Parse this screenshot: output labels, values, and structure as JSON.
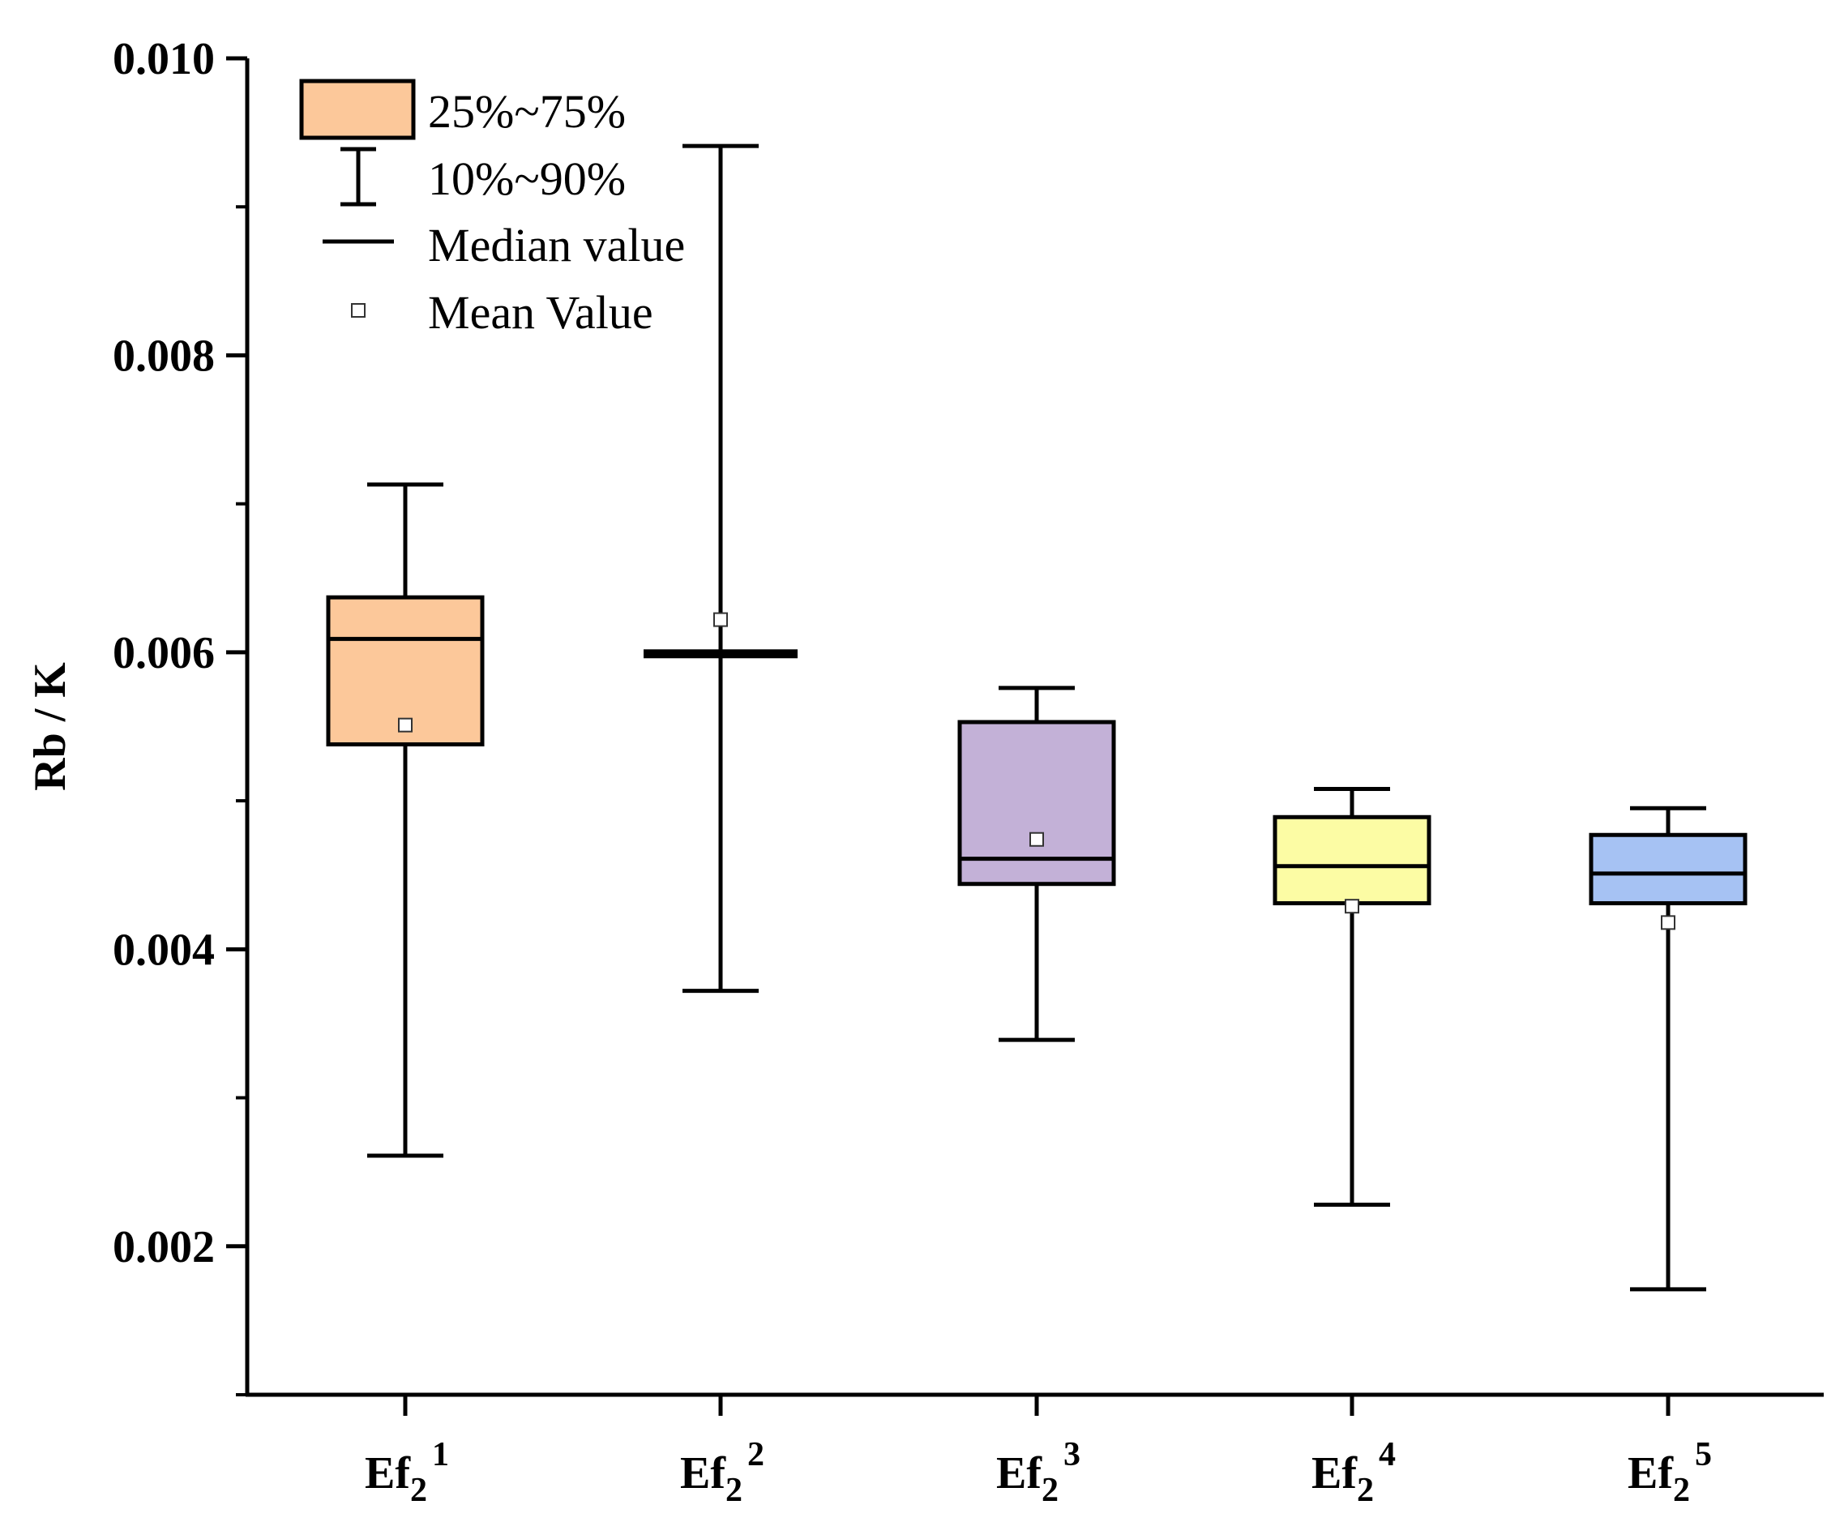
{
  "chart_data": {
    "type": "box",
    "title": "",
    "ylabel": "Rb / K",
    "xlabel": "",
    "ylim": [
      0.001,
      0.01
    ],
    "yticks": [
      "0.002",
      "0.004",
      "0.006",
      "0.008",
      "0.010"
    ],
    "ytick_values": [
      0.002,
      0.004,
      0.006,
      0.008,
      0.01
    ],
    "categories": [
      {
        "base": "Ef",
        "sub": "2",
        "sup": "1"
      },
      {
        "base": "Ef",
        "sub": "2",
        "sup": "2"
      },
      {
        "base": "Ef",
        "sub": "2",
        "sup": "3"
      },
      {
        "base": "Ef",
        "sub": "2",
        "sup": "4"
      },
      {
        "base": "Ef",
        "sub": "2",
        "sup": "5"
      }
    ],
    "boxes": [
      {
        "p10": 0.00261,
        "q1": 0.00538,
        "median": 0.00609,
        "q3": 0.00637,
        "p90": 0.00713,
        "mean": 0.00551,
        "color": "#fcc89a"
      },
      {
        "p10": 0.00372,
        "q1": 0.00599,
        "median": 0.00599,
        "q3": 0.006,
        "p90": 0.00941,
        "mean": 0.00622,
        "color": "#fcc89a"
      },
      {
        "p10": 0.00339,
        "q1": 0.00444,
        "median": 0.00461,
        "q3": 0.00553,
        "p90": 0.00576,
        "mean": 0.00474,
        "color": "#c3b1d7"
      },
      {
        "p10": 0.00228,
        "q1": 0.00431,
        "median": 0.00456,
        "q3": 0.00489,
        "p90": 0.00508,
        "mean": 0.00429,
        "color": "#fcfca4"
      },
      {
        "p10": 0.00171,
        "q1": 0.00431,
        "median": 0.00451,
        "q3": 0.00477,
        "p90": 0.00495,
        "mean": 0.00418,
        "color": "#a6c2f3"
      }
    ],
    "legend": {
      "position": "top-left",
      "items": [
        "25%~75%",
        "10%~90%",
        "Median value",
        "Mean Value"
      ],
      "box_color": "#fcc89a"
    }
  }
}
